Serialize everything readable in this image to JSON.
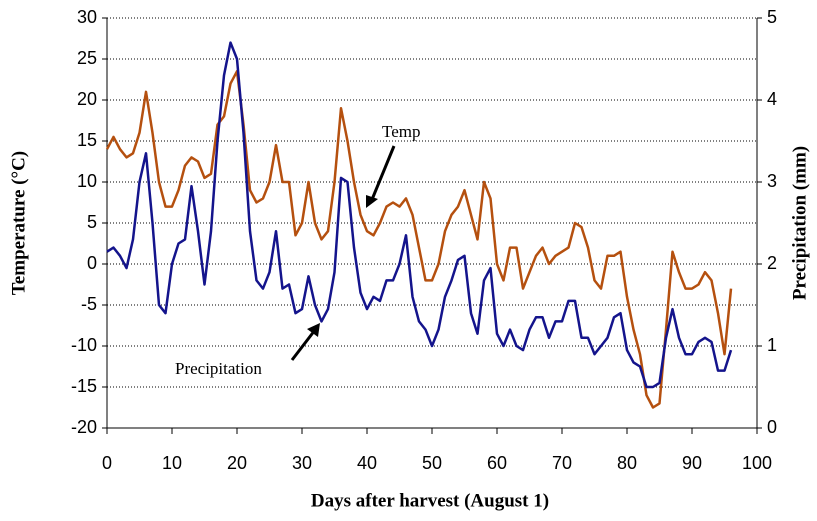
{
  "chart_data": {
    "type": "line",
    "xlabel": "Days after harvest (August 1)",
    "ylabel": "Temperature (°C)",
    "y2label": "Precipitation (mm)",
    "annotations": [
      "Temp",
      "Precipitation"
    ],
    "x": [
      0,
      1,
      2,
      3,
      4,
      5,
      6,
      7,
      8,
      9,
      10,
      11,
      12,
      13,
      14,
      15,
      16,
      17,
      18,
      19,
      20,
      21,
      22,
      23,
      24,
      25,
      26,
      27,
      28,
      29,
      30,
      31,
      32,
      33,
      34,
      35,
      36,
      37,
      38,
      39,
      40,
      41,
      42,
      43,
      44,
      45,
      46,
      47,
      48,
      49,
      50,
      51,
      52,
      53,
      54,
      55,
      56,
      57,
      58,
      59,
      60,
      61,
      62,
      63,
      64,
      65,
      66,
      67,
      68,
      69,
      70,
      71,
      72,
      73,
      74,
      75,
      76,
      77,
      78,
      79,
      80,
      81,
      82,
      83,
      84,
      85,
      86,
      87,
      88,
      89,
      90,
      91,
      92,
      93,
      94,
      95,
      96
    ],
    "series": [
      {
        "name": "Temp",
        "color": "#b5500f",
        "values": [
          14,
          15.5,
          14,
          13,
          13.5,
          16,
          21,
          16,
          10,
          7,
          7,
          9,
          12,
          13,
          12.5,
          10.5,
          11,
          17,
          18,
          22,
          23.5,
          17,
          9,
          7.5,
          8,
          10,
          14.5,
          10,
          10,
          3.5,
          5,
          10,
          5,
          3,
          4,
          10,
          19,
          15,
          10,
          6,
          4,
          3.5,
          5,
          7,
          7.5,
          7,
          8,
          6,
          2,
          -2,
          -2,
          0,
          4,
          6,
          7,
          9,
          6,
          3,
          10,
          8,
          0,
          -2,
          2,
          2,
          -3,
          -1,
          1,
          2,
          0,
          1,
          1.5,
          2,
          5,
          4.5,
          2,
          -2,
          -3,
          1,
          1,
          1.5,
          -4,
          -8,
          -11,
          -16,
          -17.5,
          -17,
          -8,
          1.5,
          -1,
          -3,
          -3,
          -2.5,
          -1,
          -2,
          -6,
          -11,
          -3
        ]
      },
      {
        "name": "Precipitation",
        "color": "#14148c",
        "axis": "y2",
        "values": [
          2.15,
          2.2,
          2.1,
          1.95,
          2.3,
          3,
          3.35,
          2.5,
          1.5,
          1.4,
          2,
          2.25,
          2.3,
          2.95,
          2.4,
          1.75,
          2.4,
          3.5,
          4.3,
          4.7,
          4.5,
          3.6,
          2.4,
          1.8,
          1.7,
          1.9,
          2.4,
          1.7,
          1.75,
          1.4,
          1.45,
          1.85,
          1.5,
          1.3,
          1.45,
          1.9,
          3.05,
          3,
          2.2,
          1.65,
          1.45,
          1.6,
          1.55,
          1.8,
          1.8,
          2,
          2.35,
          1.6,
          1.3,
          1.2,
          1,
          1.2,
          1.6,
          1.8,
          2.05,
          2.1,
          1.4,
          1.15,
          1.8,
          1.95,
          1.15,
          1,
          1.2,
          1,
          0.95,
          1.2,
          1.35,
          1.35,
          1.1,
          1.3,
          1.3,
          1.55,
          1.55,
          1.1,
          1.1,
          0.9,
          1,
          1.1,
          1.35,
          1.4,
          0.95,
          0.8,
          0.75,
          0.5,
          0.5,
          0.55,
          1.1,
          1.45,
          1.1,
          0.9,
          0.9,
          1.05,
          1.1,
          1.05,
          0.7,
          0.7,
          0.95
        ]
      }
    ],
    "xlim": [
      0,
      100
    ],
    "xticks": [
      0,
      10,
      20,
      30,
      40,
      50,
      60,
      70,
      80,
      90,
      100
    ],
    "ylim": [
      -20,
      30
    ],
    "yticks": [
      -20,
      -15,
      -10,
      -5,
      0,
      5,
      10,
      15,
      20,
      25,
      30
    ],
    "y2lim": [
      0,
      5
    ],
    "y2ticks": [
      0,
      1,
      2,
      3,
      4,
      5
    ],
    "grid": true
  }
}
